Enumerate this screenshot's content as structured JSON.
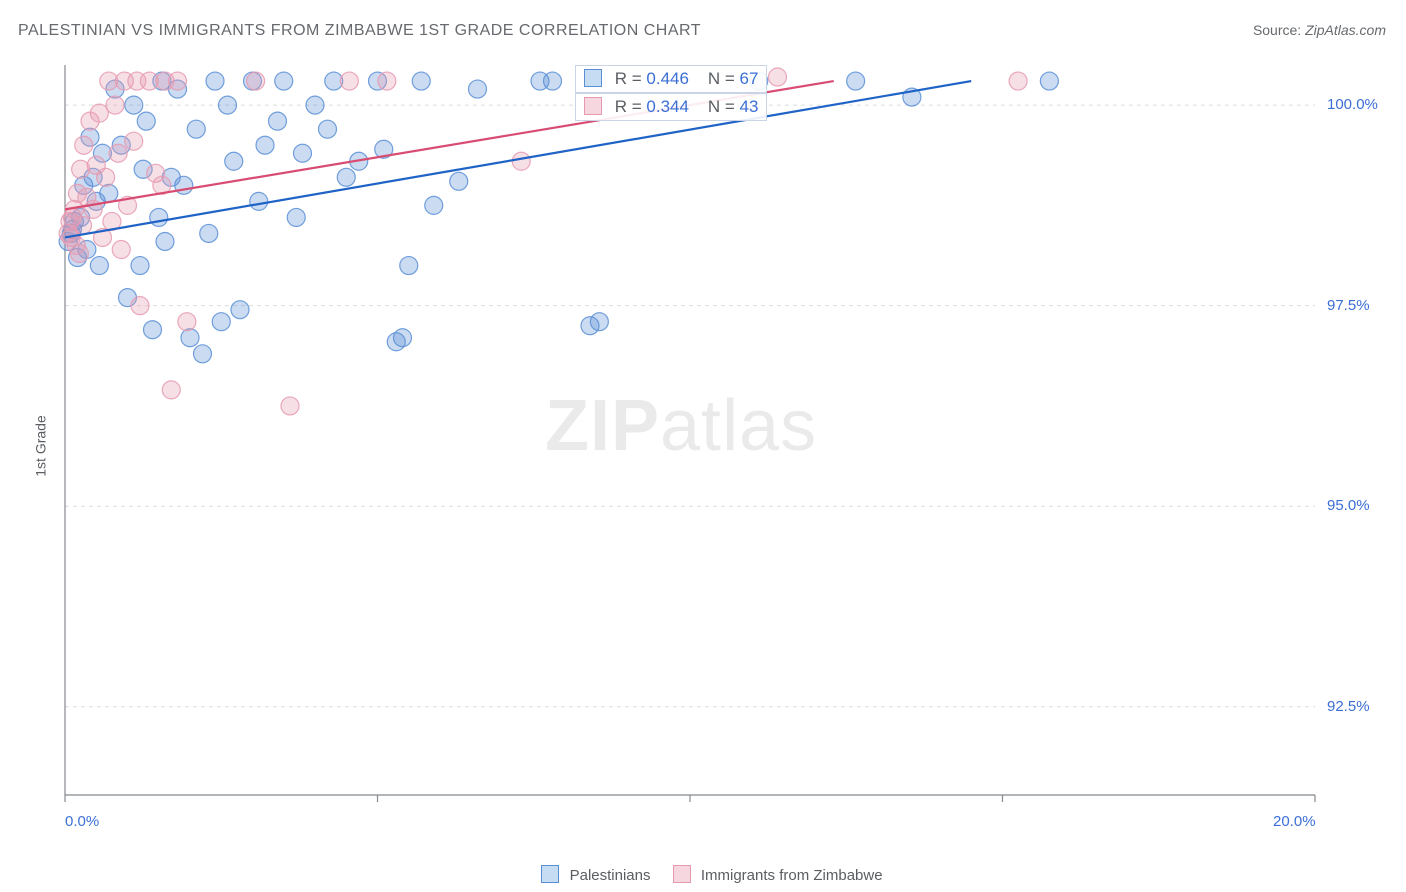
{
  "title": "PALESTINIAN VS IMMIGRANTS FROM ZIMBABWE 1ST GRADE CORRELATION CHART",
  "source_label": "Source:",
  "source_value": "ZipAtlas.com",
  "ylabel": "1st Grade",
  "watermark_bold": "ZIP",
  "watermark_rest": "atlas",
  "chart": {
    "type": "scatter",
    "background_color": "#ffffff",
    "grid_color": "#dadcde",
    "axis_color": "#85898e",
    "tick_label_color": "#3b6fd6",
    "xlim": [
      0,
      20
    ],
    "ylim": [
      91.4,
      100.5
    ],
    "xticks": [
      0,
      5,
      10,
      15,
      20
    ],
    "xtick_labels": [
      "0.0%",
      "",
      "",
      "",
      "20.0%"
    ],
    "yticks": [
      92.5,
      95.0,
      97.5,
      100.0
    ],
    "ytick_labels": [
      "92.5%",
      "95.0%",
      "97.5%",
      "100.0%"
    ],
    "marker_radius": 9,
    "marker_fill_opacity": 0.32,
    "marker_stroke_opacity": 0.85,
    "marker_stroke_width": 1.2,
    "line_width": 2.2,
    "series": [
      {
        "name": "Palestinians",
        "color": "#5a8fd6",
        "line_color": "#1f63c7",
        "R": "0.446",
        "N": "67",
        "trend": {
          "x1": 0.0,
          "y1": 98.35,
          "x2": 14.5,
          "y2": 100.3
        },
        "points": [
          [
            0.05,
            98.3
          ],
          [
            0.1,
            98.4
          ],
          [
            0.12,
            98.45
          ],
          [
            0.15,
            98.55
          ],
          [
            0.2,
            98.1
          ],
          [
            0.25,
            98.6
          ],
          [
            0.3,
            99.0
          ],
          [
            0.35,
            98.2
          ],
          [
            0.4,
            99.6
          ],
          [
            0.45,
            99.1
          ],
          [
            0.5,
            98.8
          ],
          [
            0.55,
            98.0
          ],
          [
            0.6,
            99.4
          ],
          [
            0.7,
            98.9
          ],
          [
            0.8,
            100.2
          ],
          [
            0.9,
            99.5
          ],
          [
            1.0,
            97.6
          ],
          [
            1.1,
            100.0
          ],
          [
            1.2,
            98.0
          ],
          [
            1.25,
            99.2
          ],
          [
            1.3,
            99.8
          ],
          [
            1.4,
            97.2
          ],
          [
            1.5,
            98.6
          ],
          [
            1.55,
            100.3
          ],
          [
            1.6,
            98.3
          ],
          [
            1.7,
            99.1
          ],
          [
            1.8,
            100.2
          ],
          [
            1.9,
            99.0
          ],
          [
            2.0,
            97.1
          ],
          [
            2.1,
            99.7
          ],
          [
            2.2,
            96.9
          ],
          [
            2.3,
            98.4
          ],
          [
            2.4,
            100.3
          ],
          [
            2.5,
            97.3
          ],
          [
            2.6,
            100.0
          ],
          [
            2.7,
            99.3
          ],
          [
            2.8,
            97.45
          ],
          [
            3.0,
            100.3
          ],
          [
            3.1,
            98.8
          ],
          [
            3.2,
            99.5
          ],
          [
            3.4,
            99.8
          ],
          [
            3.5,
            100.3
          ],
          [
            3.7,
            98.6
          ],
          [
            3.8,
            99.4
          ],
          [
            4.0,
            100.0
          ],
          [
            4.2,
            99.7
          ],
          [
            4.3,
            100.3
          ],
          [
            4.5,
            99.1
          ],
          [
            4.7,
            99.3
          ],
          [
            5.0,
            100.3
          ],
          [
            5.1,
            99.45
          ],
          [
            5.3,
            97.05
          ],
          [
            5.4,
            97.1
          ],
          [
            5.5,
            98.0
          ],
          [
            5.7,
            100.3
          ],
          [
            5.9,
            98.75
          ],
          [
            6.3,
            99.05
          ],
          [
            6.6,
            100.2
          ],
          [
            7.6,
            100.3
          ],
          [
            7.8,
            100.3
          ],
          [
            8.4,
            97.25
          ],
          [
            8.55,
            97.3
          ],
          [
            11.1,
            100.3
          ],
          [
            12.65,
            100.3
          ],
          [
            13.55,
            100.1
          ],
          [
            15.75,
            100.3
          ]
        ]
      },
      {
        "name": "Immigrants from Zimbabwe",
        "color": "#e69ab0",
        "line_color": "#d94c72",
        "R": "0.344",
        "N": "43",
        "trend": {
          "x1": 0.0,
          "y1": 98.7,
          "x2": 12.3,
          "y2": 100.3
        },
        "points": [
          [
            0.05,
            98.4
          ],
          [
            0.08,
            98.55
          ],
          [
            0.1,
            98.35
          ],
          [
            0.12,
            98.6
          ],
          [
            0.15,
            98.7
          ],
          [
            0.18,
            98.25
          ],
          [
            0.2,
            98.9
          ],
          [
            0.23,
            98.15
          ],
          [
            0.25,
            99.2
          ],
          [
            0.28,
            98.5
          ],
          [
            0.3,
            99.5
          ],
          [
            0.35,
            98.85
          ],
          [
            0.4,
            99.8
          ],
          [
            0.45,
            98.7
          ],
          [
            0.5,
            99.25
          ],
          [
            0.55,
            99.9
          ],
          [
            0.6,
            98.35
          ],
          [
            0.65,
            99.1
          ],
          [
            0.7,
            100.3
          ],
          [
            0.75,
            98.55
          ],
          [
            0.8,
            100.0
          ],
          [
            0.85,
            99.4
          ],
          [
            0.9,
            98.2
          ],
          [
            0.95,
            100.3
          ],
          [
            1.0,
            98.75
          ],
          [
            1.1,
            99.55
          ],
          [
            1.15,
            100.3
          ],
          [
            1.2,
            97.5
          ],
          [
            1.35,
            100.3
          ],
          [
            1.45,
            99.15
          ],
          [
            1.55,
            99.0
          ],
          [
            1.6,
            100.3
          ],
          [
            1.7,
            96.45
          ],
          [
            1.8,
            100.3
          ],
          [
            1.95,
            97.3
          ],
          [
            3.05,
            100.3
          ],
          [
            3.6,
            96.25
          ],
          [
            4.55,
            100.3
          ],
          [
            5.15,
            100.3
          ],
          [
            7.3,
            99.3
          ],
          [
            11.4,
            100.35
          ],
          [
            15.25,
            100.3
          ]
        ]
      }
    ],
    "stat_box": {
      "R_label": "R =",
      "N_label": "N ="
    },
    "legend_bottom": {
      "swatch_border_blue": "#5a8fd6",
      "swatch_fill_blue": "#c6dcf3",
      "swatch_border_pink": "#e69ab0",
      "swatch_fill_pink": "#f6d7e0"
    }
  }
}
